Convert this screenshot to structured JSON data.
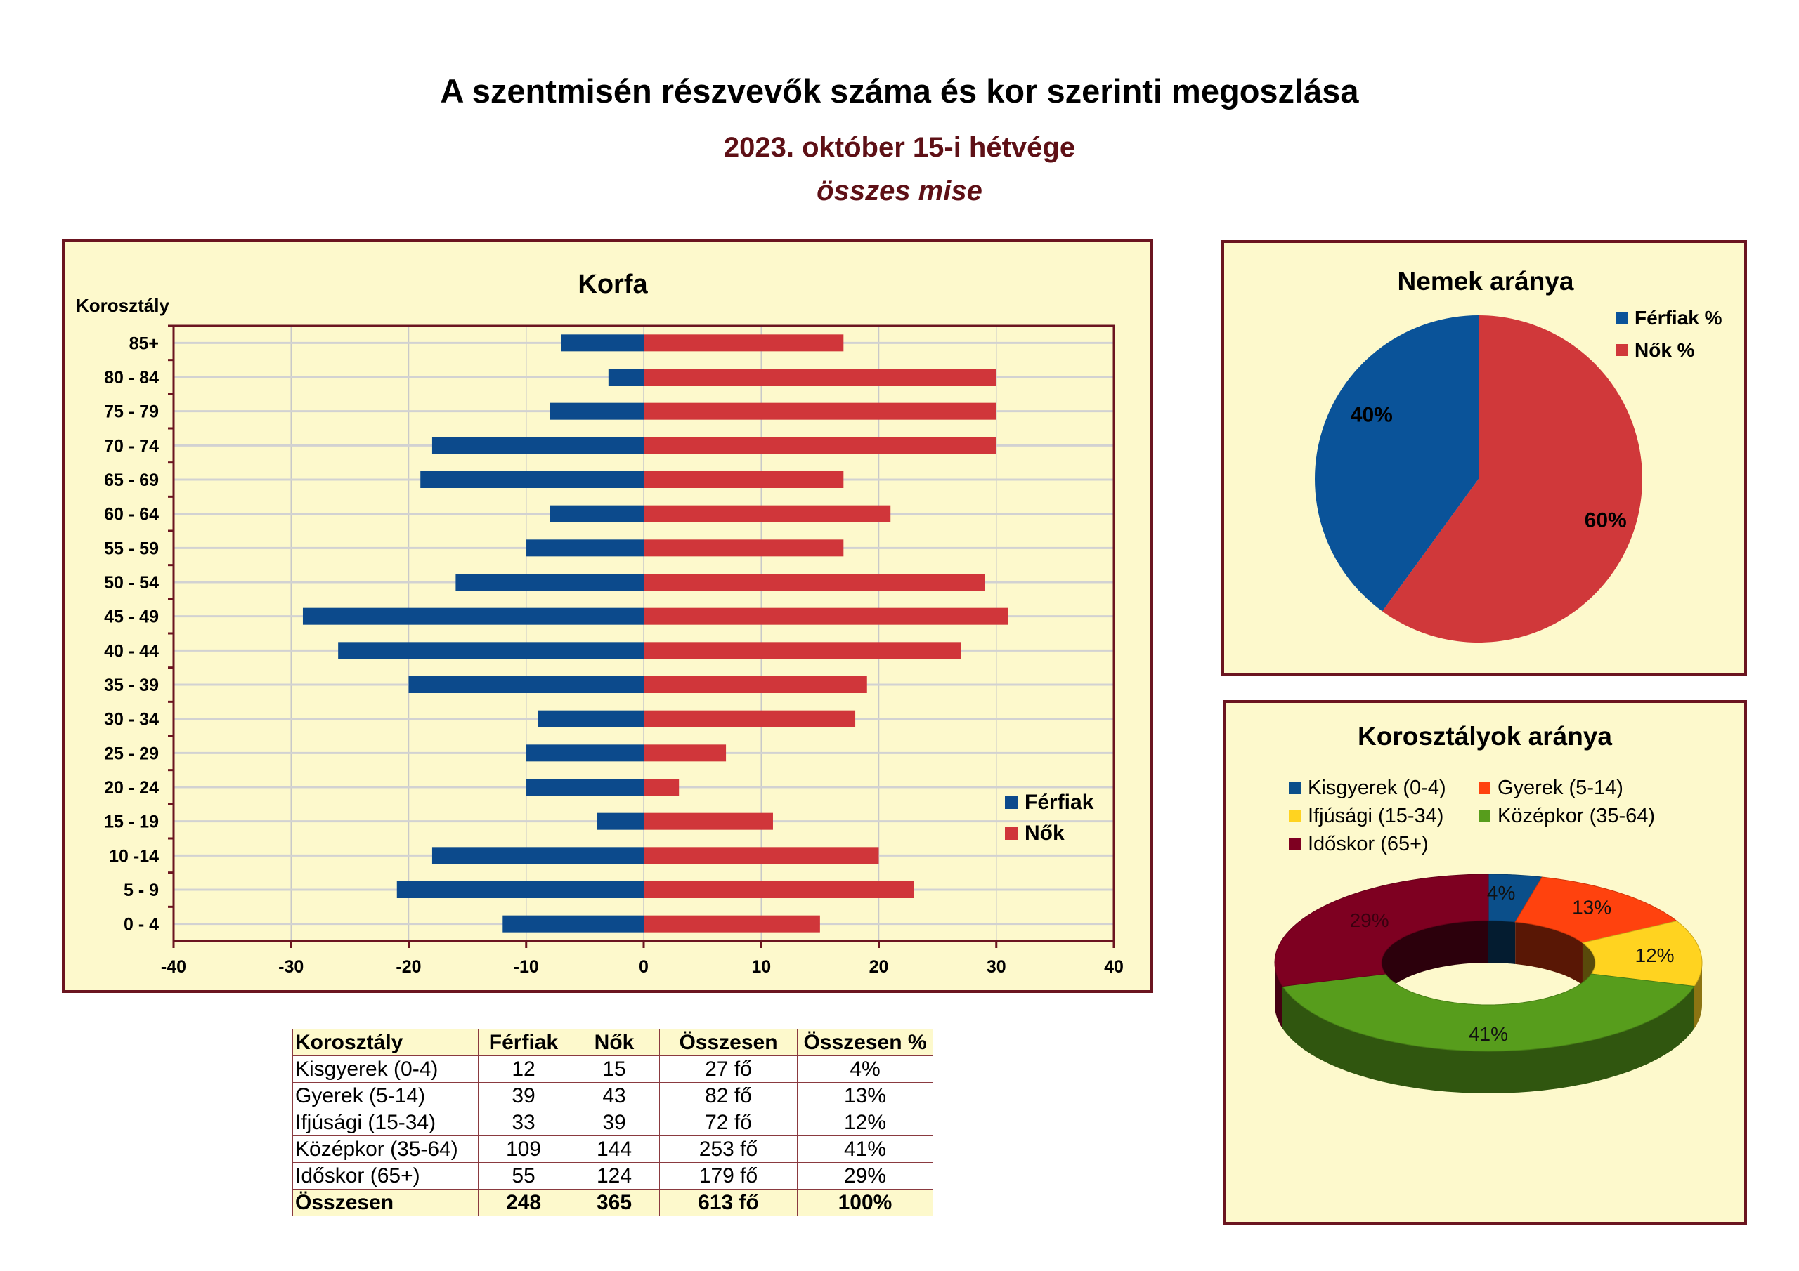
{
  "header": {
    "title": "A szentmisén részvevők száma és kor szerinti megoszlása",
    "subtitle": "2023. október 15-i hétvége",
    "subtitle2": "összes mise"
  },
  "chart_data": [
    {
      "type": "bar",
      "orientation": "horizontal",
      "title": "Korfa",
      "ylabel": "Korosztály",
      "categories": [
        "0 - 4",
        "5 - 9",
        "10 -14",
        "15 - 19",
        "20 - 24",
        "25 - 29",
        "30 - 34",
        "35 - 39",
        "40 - 44",
        "45 - 49",
        "50 - 54",
        "55 - 59",
        "60 - 64",
        "65 - 69",
        "70 - 74",
        "75 - 79",
        "80 - 84",
        "85+"
      ],
      "series": [
        {
          "name": "Férfiak",
          "color": "#0c4a8c",
          "values": [
            -12,
            -21,
            -18,
            -4,
            -10,
            -10,
            -9,
            -20,
            -26,
            -29,
            -16,
            -10,
            -8,
            -19,
            -18,
            -8,
            -3,
            -7
          ]
        },
        {
          "name": "Nők",
          "color": "#d0363a",
          "values": [
            15,
            23,
            20,
            11,
            3,
            7,
            18,
            19,
            27,
            31,
            29,
            17,
            21,
            17,
            30,
            30,
            30,
            17
          ]
        }
      ],
      "xlim": [
        -40,
        40
      ],
      "xticks": [
        -40,
        -30,
        -20,
        -10,
        0,
        10,
        20,
        30,
        40
      ],
      "grid": true,
      "legend": "right"
    },
    {
      "type": "pie",
      "title": "Nemek aránya",
      "slices": [
        {
          "name": "Férfiak %",
          "value": 40,
          "label": "40%",
          "color": "#0a5399"
        },
        {
          "name": "Nők %",
          "value": 60,
          "label": "60%",
          "color": "#d0383a"
        }
      ],
      "legend": "top-right"
    },
    {
      "type": "pie",
      "subtype": "donut-3d",
      "title": "Korosztályok aránya",
      "slices": [
        {
          "name": "Kisgyerek (0-4)",
          "value": 4,
          "label": "4%",
          "color": "#0b4f8a"
        },
        {
          "name": "Gyerek (5-14)",
          "value": 13,
          "label": "13%",
          "color": "#ff420e"
        },
        {
          "name": "Ifjúsági (15-34)",
          "value": 12,
          "label": "12%",
          "color": "#ffd320"
        },
        {
          "name": "Középkor (35-64)",
          "value": 41,
          "label": "41%",
          "color": "#579d1c"
        },
        {
          "name": "Időskor (65+)",
          "value": 29,
          "label": "29%",
          "color": "#7e0021"
        }
      ],
      "legend": "top"
    }
  ],
  "table": {
    "headers": [
      "Korosztály",
      "Férfiak",
      "Nők",
      "Összesen",
      "Összesen %"
    ],
    "rows": [
      [
        "Kisgyerek (0-4)",
        "12",
        "15",
        "27 fő",
        "4%"
      ],
      [
        "Gyerek (5-14)",
        "39",
        "43",
        "82 fő",
        "13%"
      ],
      [
        "Ifjúsági (15-34)",
        "33",
        "39",
        "72 fő",
        "12%"
      ],
      [
        "Középkor (35-64)",
        "109",
        "144",
        "253 fő",
        "41%"
      ],
      [
        "Időskor (65+)",
        "55",
        "124",
        "179 fő",
        "29%"
      ]
    ],
    "total": [
      "Összesen",
      "248",
      "365",
      "613 fő",
      "100%"
    ]
  }
}
